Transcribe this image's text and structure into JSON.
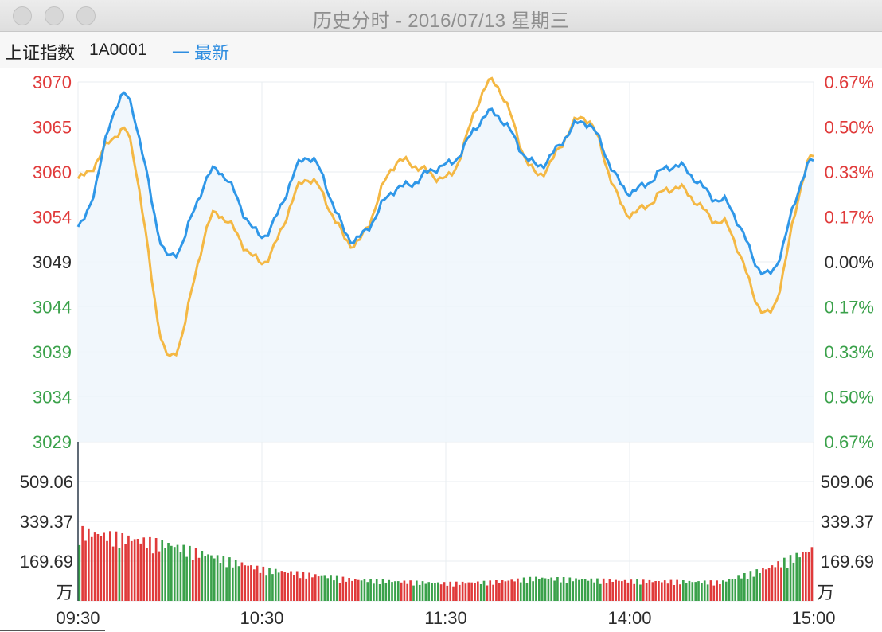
{
  "window": {
    "title": "历史分时 - 2016/07/13 星期三"
  },
  "header": {
    "name": "上证指数",
    "code": "1A0001",
    "legend": "一 最新"
  },
  "colors": {
    "up": "#e03a3a",
    "down": "#3aa14a",
    "flat": "#2b2b2b",
    "price_line": "#2f97e8",
    "avg_line": "#f4b844",
    "grid": "#e9edf1"
  },
  "chart_data": [
    {
      "type": "line",
      "title": "",
      "xlabel": "",
      "ylabel": "",
      "x_ticks": [
        "09:30",
        "10:30",
        "11:30",
        "14:00",
        "15:00"
      ],
      "y_ticks_left": [
        "3070",
        "3065",
        "3060",
        "3054",
        "3049",
        "3044",
        "3039",
        "3034",
        "3029"
      ],
      "y_ticks_right": [
        "0.67%",
        "0.50%",
        "0.33%",
        "0.17%",
        "0.00%",
        "0.17%",
        "0.33%",
        "0.50%",
        "0.67%"
      ],
      "y_tick_colors": [
        "up",
        "up",
        "up",
        "up",
        "flat",
        "down",
        "down",
        "down",
        "down"
      ],
      "ylim": [
        3029,
        3070
      ],
      "reference": 3049,
      "x": [
        "09:30",
        "09:45",
        "10:00",
        "10:15",
        "10:30",
        "10:45",
        "11:00",
        "11:15",
        "11:30",
        "13:15",
        "13:30",
        "13:45",
        "14:00",
        "14:15",
        "14:30",
        "14:45",
        "15:00"
      ],
      "series": [
        {
          "color_key": "price_line",
          "values": [
            3053.5,
            3068.5,
            3050,
            3060,
            3052.5,
            3061.5,
            3052,
            3058,
            3060.5,
            3066.5,
            3060.5,
            3065.5,
            3057.5,
            3060.5,
            3056.5,
            3048,
            3061
          ]
        },
        {
          "color_key": "avg_line",
          "values": [
            3059,
            3064.5,
            3038.5,
            3055,
            3049.5,
            3059,
            3051.5,
            3061,
            3059,
            3070,
            3059.5,
            3066,
            3055,
            3058,
            3054,
            3043.5,
            3061.5
          ]
        }
      ]
    },
    {
      "type": "bar",
      "title": "",
      "unit": "万",
      "y_ticks": [
        "509.06",
        "339.37",
        "169.69"
      ],
      "ylim": [
        0,
        678.75
      ],
      "x": [
        "09:30",
        "10:00",
        "10:30",
        "11:00",
        "11:30",
        "13:15",
        "13:30",
        "14:00",
        "14:30",
        "14:45",
        "15:00"
      ],
      "values": [
        281,
        225,
        128,
        85,
        71,
        76,
        92,
        80,
        76,
        132,
        210
      ]
    }
  ]
}
